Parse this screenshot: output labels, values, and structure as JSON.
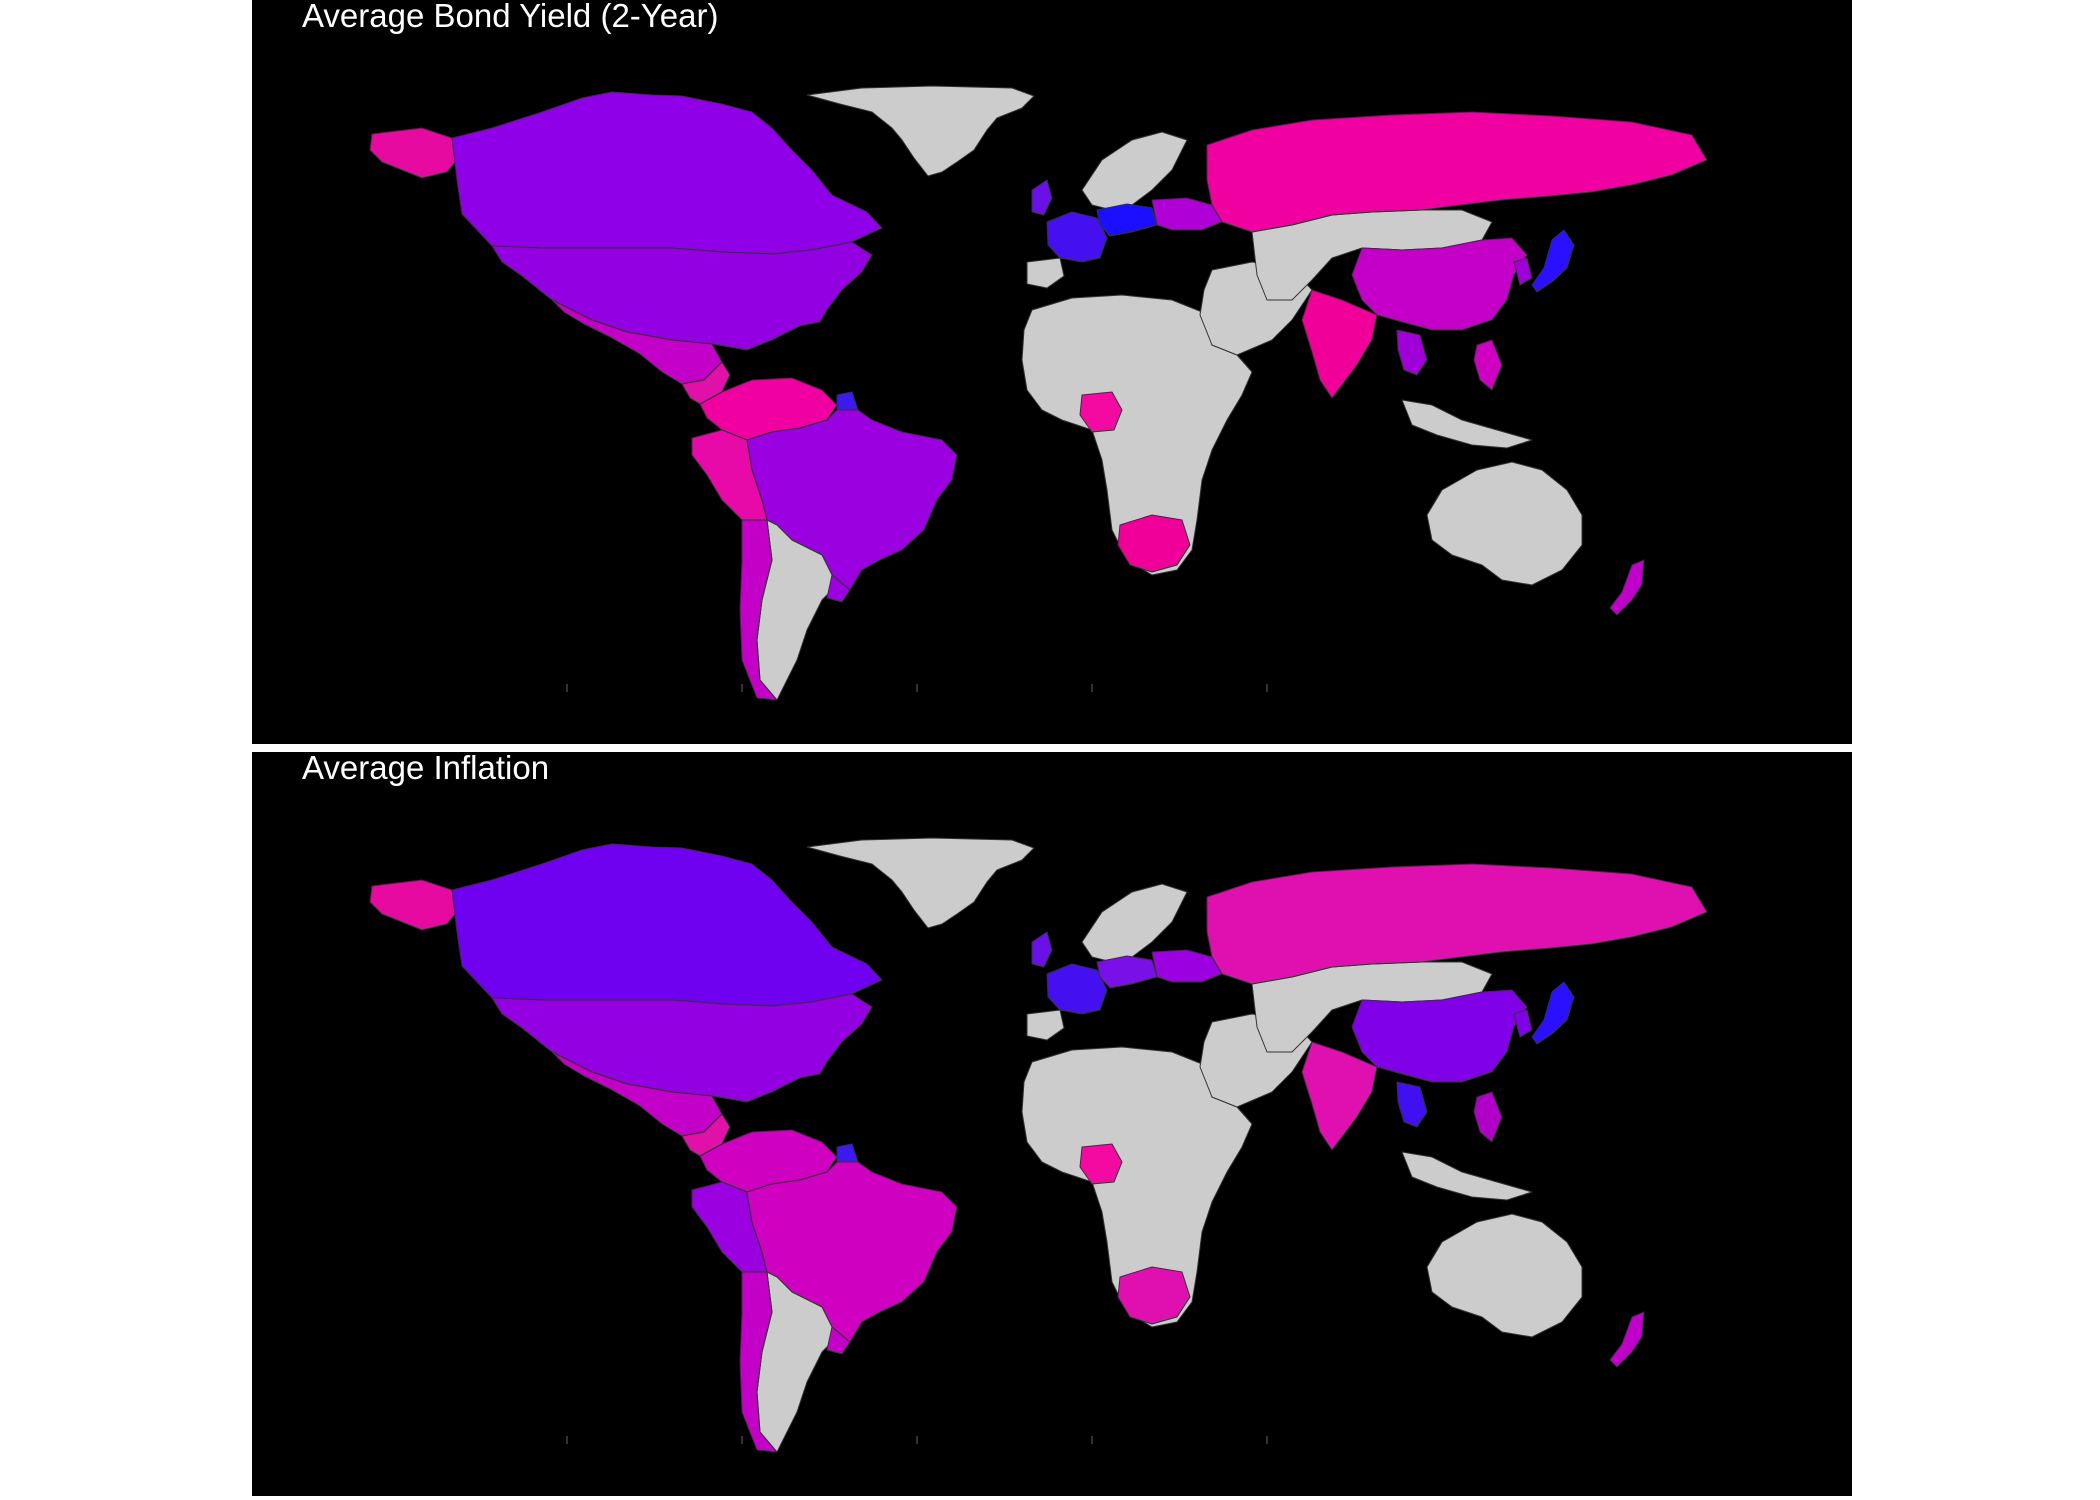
{
  "colors": {
    "background": "#000000",
    "no_data": "#cccccc",
    "border": "#333333",
    "low": "#1a10ff",
    "mid": "#9500e0",
    "high": "#f00099"
  },
  "maps": [
    {
      "title": "Average Bond Yield (2-Year)",
      "fills": {
        "alaska": "#e60aa0",
        "canada": "#8f00e8",
        "usa": "#9300e2",
        "greenland": "#cccccc",
        "mexico": "#c300c8",
        "central_america": "#e010a8",
        "venezuela_colombia": "#f000a0",
        "guyana": "#3a1af0",
        "brazil": "#9a00e0",
        "peru_ecuador": "#e80aa8",
        "chile": "#c400c8",
        "argentina": "#cccccc",
        "uruguay": "#9a00e0",
        "west_europe": "#4410f0",
        "central_europe": "#1a10ff",
        "east_europe": "#b000d8",
        "iberia": "#cccccc",
        "scandinavia": "#cccccc",
        "uk": "#6a10e8",
        "russia": "#f000a0",
        "mongolia_central_asia": "#cccccc",
        "china": "#c400c8",
        "india": "#f00099",
        "japan": "#2a10ff",
        "korea": "#a000d8",
        "philippines": "#d000c0",
        "thailand": "#a000d8",
        "indonesia": "#cccccc",
        "australia": "#cccccc",
        "new_zealand": "#c000c8",
        "africa": "#cccccc",
        "nigeria": "#f40aa0",
        "south_africa": "#f00099",
        "middle_east": "#cccccc"
      }
    },
    {
      "title": "Average Inflation",
      "fills": {
        "alaska": "#e60aa0",
        "canada": "#7000f0",
        "usa": "#9300e2",
        "greenland": "#cccccc",
        "mexico": "#c300c8",
        "central_america": "#e010a8",
        "venezuela_colombia": "#d000c0",
        "guyana": "#3a1af0",
        "brazil": "#d000c0",
        "peru_ecuador": "#9a00e0",
        "chile": "#c400c8",
        "argentina": "#cccccc",
        "uruguay": "#c400c8",
        "west_europe": "#4410f0",
        "central_europe": "#7a10e8",
        "east_europe": "#9a00e0",
        "iberia": "#cccccc",
        "scandinavia": "#cccccc",
        "uk": "#6a10e8",
        "russia": "#e010b0",
        "mongolia_central_asia": "#cccccc",
        "china": "#8000e8",
        "india": "#e010b0",
        "japan": "#2a10ff",
        "korea": "#8000e8",
        "philippines": "#b000c8",
        "thailand": "#4010f0",
        "indonesia": "#cccccc",
        "australia": "#cccccc",
        "new_zealand": "#c000c8",
        "africa": "#cccccc",
        "nigeria": "#f40aa0",
        "south_africa": "#e010b0",
        "middle_east": "#cccccc"
      }
    }
  ]
}
